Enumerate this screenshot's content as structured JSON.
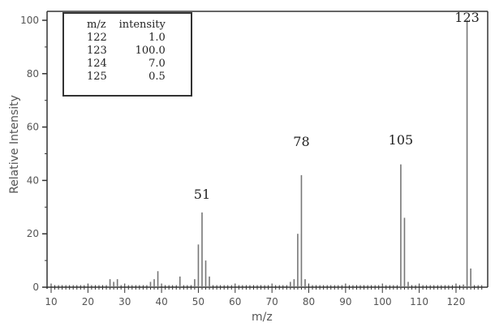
{
  "chart_data": {
    "type": "bar",
    "title": "",
    "xlabel": "m/z",
    "ylabel": "Relative Intensity",
    "xlim": [
      10,
      130
    ],
    "ylim": [
      0,
      100
    ],
    "xticks": [
      10,
      20,
      30,
      40,
      50,
      60,
      70,
      80,
      90,
      100,
      110,
      120
    ],
    "yticks": [
      0,
      20,
      40,
      60,
      80,
      100
    ],
    "grid": false,
    "x": [
      26,
      27,
      28,
      37,
      38,
      39,
      45,
      49,
      50,
      51,
      52,
      53,
      75,
      76,
      77,
      78,
      79,
      105,
      106,
      107,
      122,
      123,
      124
    ],
    "values": [
      3,
      2,
      3,
      2,
      3,
      6,
      4,
      3,
      16,
      28,
      10,
      4,
      2,
      3,
      20,
      42,
      3,
      46,
      26,
      2,
      1,
      100,
      7
    ],
    "annotations": [
      {
        "x": 51,
        "text": "51"
      },
      {
        "x": 78,
        "text": "78"
      },
      {
        "x": 105,
        "text": "105"
      },
      {
        "x": 123,
        "text": "123"
      }
    ],
    "inset_table": {
      "headers": [
        "m/z",
        "intensity"
      ],
      "rows": [
        [
          "122",
          "1.0"
        ],
        [
          "123",
          "100.0"
        ],
        [
          "124",
          "7.0"
        ],
        [
          "125",
          "0.5"
        ]
      ]
    }
  },
  "labels": {
    "xlabel": "m/z",
    "ylabel": "Relative Intensity",
    "legend_h1": "m/z",
    "legend_h2": "intensity"
  }
}
